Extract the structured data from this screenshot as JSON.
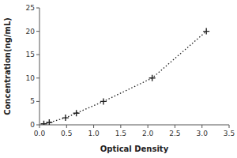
{
  "chart_data": {
    "type": "line",
    "xlabel": "Optical Density",
    "ylabel": "Concentration(ng/mL)",
    "x": [
      0.08,
      0.18,
      0.48,
      0.68,
      1.18,
      2.08,
      3.08
    ],
    "values": [
      0.2,
      0.5,
      1.5,
      2.5,
      5.0,
      10.0,
      20.0
    ],
    "xlim": [
      0,
      3.5
    ],
    "ylim": [
      0,
      25
    ],
    "xticks": [
      {
        "value": 0,
        "label": "0.0"
      },
      0.5,
      {
        "value": 1.0,
        "label": "1.0"
      },
      1.5,
      {
        "value": 2.0,
        "label": "2.0"
      },
      2.5,
      {
        "value": 3.0,
        "label": "3.0"
      },
      3.5
    ],
    "yticks": [
      0,
      5,
      10,
      15,
      20,
      25
    ],
    "color": "#222222",
    "marker": "plus",
    "line_style": "dotted",
    "grid": false
  }
}
